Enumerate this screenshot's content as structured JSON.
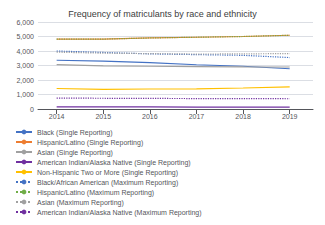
{
  "chart_data": {
    "type": "line",
    "title": "Frequency of matriculants by race and ethnicity",
    "x": [
      2014,
      2015,
      2016,
      2017,
      2018,
      2019
    ],
    "xlim": [
      2013.6,
      2019.5
    ],
    "xticks": [
      2014,
      2015,
      2016,
      2017,
      2018,
      2019
    ],
    "ylim": [
      0,
      6000
    ],
    "yticks": [
      0,
      {
        "value": 1000,
        "label": "1,000"
      },
      {
        "value": 2000,
        "label": "2,000"
      },
      {
        "value": 3000,
        "label": "3,000"
      },
      {
        "value": 4000,
        "label": "4,000"
      },
      {
        "value": 5000,
        "label": "5,000"
      },
      {
        "value": 6000,
        "label": "6,000"
      }
    ],
    "grid": true,
    "legend": "lower left",
    "series": [
      {
        "name": "Black (Single Reporting)",
        "values": [
          3363,
          3300,
          3200,
          3050,
          2950,
          2775
        ],
        "color": "#4472C4",
        "line_style": "solid"
      },
      {
        "name": "Asian (Single Reporting)",
        "values": [
          3067,
          2980,
          2950,
          2920,
          2900,
          2898
        ],
        "color": "#A0A0A0",
        "line_style": "solid"
      },
      {
        "name": "Non-Hispanic Two or More (Single Reporting)",
        "values": [
          1415,
          1350,
          1380,
          1390,
          1450,
          1531
        ],
        "color": "#FFC000",
        "line_style": "solid"
      },
      {
        "name": "Hispanic/Latino (Single Reporting)",
        "values": [
          4813,
          4820,
          4900,
          4950,
          5000,
          5085
        ],
        "color": "#ED7D31",
        "line_style": "solid"
      },
      {
        "name": "American Indian/Alaska Native (Single Reporting)",
        "values": [
          148,
          145,
          140,
          135,
          130,
          126
        ],
        "color": "#7030A0",
        "line_style": "solid"
      },
      {
        "name": "Black/African American (Maximum Reporting)",
        "values": [
          3999,
          3900,
          3800,
          3750,
          3700,
          3548
        ],
        "color": "#4472C4",
        "line_style": "dotted"
      },
      {
        "name": "Hispanic/Latino (Maximum Reporting)",
        "values": [
          4813,
          4820,
          4900,
          4950,
          5000,
          5085
        ],
        "color": "#70AD47",
        "line_style": "dotted"
      },
      {
        "name": "Asian (Maximum Reporting)",
        "values": [
          3920,
          3850,
          3820,
          3790,
          3800,
          3823
        ],
        "color": "#A0A0A0",
        "line_style": "dotted"
      },
      {
        "name": "American Indian/Alaska Native (Maximum Reporting)",
        "values": [
          755,
          740,
          730,
          720,
          715,
          708
        ],
        "color": "#7030A0",
        "line_style": "dotted"
      }
    ],
    "legend_order": [
      "Black (Single Reporting)",
      "Hispanic/Latino (Single Reporting)",
      "Asian (Single Reporting)",
      "American Indian/Alaska Native (Single Reporting)",
      "Non-Hispanic Two or More (Single Reporting)",
      "Black/African American (Maximum Reporting)",
      "Hispanic/Latino (Maximum Reporting)",
      "Asian (Maximum Reporting)",
      "American Indian/Alaska Native (Maximum Reporting)"
    ]
  }
}
